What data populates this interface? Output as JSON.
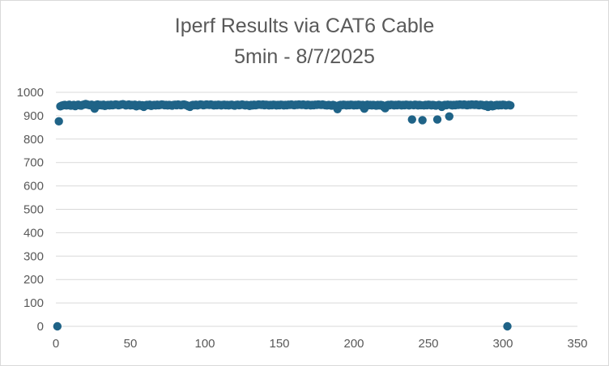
{
  "chart_data": {
    "type": "scatter",
    "title": "Iperf Results via CAT6 Cable",
    "subtitle": "5min - 8/7/2025",
    "xlabel": "",
    "ylabel": "",
    "xlim": [
      0,
      350
    ],
    "ylim": [
      0,
      1000
    ],
    "x_ticks": [
      0,
      50,
      100,
      150,
      200,
      250,
      300,
      350
    ],
    "y_ticks": [
      0,
      100,
      200,
      300,
      400,
      500,
      600,
      700,
      800,
      900,
      1000
    ],
    "grid": "horizontal",
    "legend": "none",
    "marker_color": "#1f6387",
    "series": [
      {
        "points": [
          [
            1,
            0
          ],
          [
            2,
            876
          ],
          [
            303,
            0
          ],
          [
            239,
            884
          ],
          [
            246,
            881
          ],
          [
            256,
            884
          ],
          [
            264,
            897
          ],
          [
            189,
            928
          ],
          [
            207,
            930
          ],
          [
            221,
            932
          ],
          [
            26,
            930
          ],
          [
            3,
            940
          ],
          [
            4,
            943
          ],
          [
            5,
            945
          ],
          [
            6,
            946
          ],
          [
            7,
            944
          ],
          [
            8,
            945
          ],
          [
            9,
            947
          ],
          [
            10,
            943
          ],
          [
            11,
            944
          ],
          [
            12,
            946
          ],
          [
            13,
            941
          ],
          [
            14,
            945
          ],
          [
            15,
            947
          ],
          [
            16,
            944
          ],
          [
            17,
            943
          ],
          [
            18,
            946
          ],
          [
            19,
            948
          ],
          [
            20,
            950
          ],
          [
            21,
            948
          ],
          [
            22,
            946
          ],
          [
            23,
            945
          ],
          [
            24,
            947
          ],
          [
            25,
            944
          ],
          [
            27,
            946
          ],
          [
            28,
            948
          ],
          [
            29,
            945
          ],
          [
            30,
            946
          ],
          [
            31,
            944
          ],
          [
            32,
            947
          ],
          [
            33,
            942
          ],
          [
            34,
            945
          ],
          [
            35,
            946
          ],
          [
            36,
            944
          ],
          [
            37,
            947
          ],
          [
            38,
            945
          ],
          [
            39,
            946
          ],
          [
            40,
            948
          ],
          [
            41,
            947
          ],
          [
            42,
            945
          ],
          [
            43,
            946
          ],
          [
            44,
            948
          ],
          [
            45,
            949
          ],
          [
            46,
            947
          ],
          [
            47,
            944
          ],
          [
            48,
            946
          ],
          [
            49,
            948
          ],
          [
            50,
            944
          ],
          [
            51,
            946
          ],
          [
            52,
            945
          ],
          [
            53,
            947
          ],
          [
            54,
            940
          ],
          [
            55,
            944
          ],
          [
            56,
            946
          ],
          [
            57,
            943
          ],
          [
            58,
            945
          ],
          [
            59,
            938
          ],
          [
            60,
            944
          ],
          [
            61,
            946
          ],
          [
            62,
            945
          ],
          [
            63,
            947
          ],
          [
            64,
            942
          ],
          [
            65,
            945
          ],
          [
            66,
            946
          ],
          [
            67,
            944
          ],
          [
            68,
            947
          ],
          [
            69,
            945
          ],
          [
            70,
            946
          ],
          [
            71,
            948
          ],
          [
            72,
            947
          ],
          [
            73,
            945
          ],
          [
            74,
            946
          ],
          [
            75,
            944
          ],
          [
            76,
            946
          ],
          [
            77,
            945
          ],
          [
            78,
            943
          ],
          [
            79,
            946
          ],
          [
            80,
            947
          ],
          [
            81,
            945
          ],
          [
            82,
            948
          ],
          [
            83,
            946
          ],
          [
            84,
            945
          ],
          [
            85,
            947
          ],
          [
            86,
            948
          ],
          [
            87,
            946
          ],
          [
            88,
            944
          ],
          [
            89,
            940
          ],
          [
            90,
            938
          ],
          [
            91,
            944
          ],
          [
            92,
            946
          ],
          [
            93,
            945
          ],
          [
            94,
            947
          ],
          [
            95,
            944
          ],
          [
            96,
            946
          ],
          [
            97,
            948
          ],
          [
            98,
            947
          ],
          [
            99,
            945
          ],
          [
            100,
            946
          ],
          [
            101,
            948
          ],
          [
            102,
            947
          ],
          [
            103,
            946
          ],
          [
            104,
            948
          ],
          [
            105,
            946
          ],
          [
            106,
            944
          ],
          [
            107,
            946
          ],
          [
            108,
            945
          ],
          [
            109,
            947
          ],
          [
            110,
            946
          ],
          [
            111,
            944
          ],
          [
            112,
            946
          ],
          [
            113,
            947
          ],
          [
            114,
            945
          ],
          [
            115,
            946
          ],
          [
            116,
            944
          ],
          [
            117,
            946
          ],
          [
            118,
            947
          ],
          [
            119,
            945
          ],
          [
            120,
            943
          ],
          [
            121,
            946
          ],
          [
            122,
            947
          ],
          [
            123,
            945
          ],
          [
            124,
            946
          ],
          [
            125,
            948
          ],
          [
            126,
            946
          ],
          [
            127,
            944
          ],
          [
            128,
            946
          ],
          [
            129,
            945
          ],
          [
            130,
            942
          ],
          [
            131,
            946
          ],
          [
            132,
            944
          ],
          [
            133,
            947
          ],
          [
            134,
            945
          ],
          [
            135,
            946
          ],
          [
            136,
            948
          ],
          [
            137,
            947
          ],
          [
            138,
            946
          ],
          [
            139,
            948
          ],
          [
            140,
            945
          ],
          [
            141,
            947
          ],
          [
            142,
            946
          ],
          [
            143,
            944
          ],
          [
            144,
            946
          ],
          [
            145,
            945
          ],
          [
            146,
            947
          ],
          [
            147,
            946
          ],
          [
            148,
            944
          ],
          [
            149,
            946
          ],
          [
            150,
            945
          ],
          [
            151,
            947
          ],
          [
            152,
            946
          ],
          [
            153,
            944
          ],
          [
            154,
            946
          ],
          [
            155,
            945
          ],
          [
            156,
            947
          ],
          [
            157,
            946
          ],
          [
            158,
            948
          ],
          [
            159,
            946
          ],
          [
            160,
            945
          ],
          [
            161,
            947
          ],
          [
            162,
            946
          ],
          [
            163,
            948
          ],
          [
            164,
            947
          ],
          [
            165,
            946
          ],
          [
            166,
            948
          ],
          [
            167,
            946
          ],
          [
            168,
            945
          ],
          [
            169,
            947
          ],
          [
            170,
            946
          ],
          [
            171,
            944
          ],
          [
            172,
            946
          ],
          [
            173,
            945
          ],
          [
            174,
            947
          ],
          [
            175,
            946
          ],
          [
            176,
            948
          ],
          [
            177,
            947
          ],
          [
            178,
            946
          ],
          [
            179,
            948
          ],
          [
            180,
            946
          ],
          [
            181,
            945
          ],
          [
            182,
            944
          ],
          [
            183,
            946
          ],
          [
            184,
            945
          ],
          [
            185,
            943
          ],
          [
            186,
            946
          ],
          [
            187,
            944
          ],
          [
            188,
            940
          ],
          [
            190,
            944
          ],
          [
            191,
            946
          ],
          [
            192,
            945
          ],
          [
            193,
            947
          ],
          [
            194,
            946
          ],
          [
            195,
            944
          ],
          [
            196,
            946
          ],
          [
            197,
            945
          ],
          [
            198,
            947
          ],
          [
            199,
            946
          ],
          [
            200,
            944
          ],
          [
            201,
            946
          ],
          [
            202,
            945
          ],
          [
            203,
            947
          ],
          [
            204,
            946
          ],
          [
            205,
            944
          ],
          [
            206,
            946
          ],
          [
            208,
            944
          ],
          [
            209,
            947
          ],
          [
            210,
            945
          ],
          [
            211,
            946
          ],
          [
            212,
            944
          ],
          [
            213,
            946
          ],
          [
            214,
            945
          ],
          [
            215,
            943
          ],
          [
            216,
            946
          ],
          [
            217,
            944
          ],
          [
            218,
            946
          ],
          [
            219,
            945
          ],
          [
            220,
            938
          ],
          [
            222,
            944
          ],
          [
            223,
            946
          ],
          [
            224,
            945
          ],
          [
            225,
            947
          ],
          [
            226,
            946
          ],
          [
            227,
            944
          ],
          [
            228,
            946
          ],
          [
            229,
            945
          ],
          [
            230,
            947
          ],
          [
            231,
            946
          ],
          [
            232,
            944
          ],
          [
            233,
            946
          ],
          [
            234,
            945
          ],
          [
            235,
            947
          ],
          [
            236,
            946
          ],
          [
            237,
            944
          ],
          [
            238,
            946
          ],
          [
            240,
            945
          ],
          [
            241,
            947
          ],
          [
            242,
            946
          ],
          [
            243,
            944
          ],
          [
            244,
            946
          ],
          [
            245,
            945
          ],
          [
            247,
            944
          ],
          [
            248,
            946
          ],
          [
            249,
            945
          ],
          [
            250,
            947
          ],
          [
            251,
            946
          ],
          [
            252,
            944
          ],
          [
            253,
            946
          ],
          [
            254,
            945
          ],
          [
            255,
            943
          ],
          [
            257,
            946
          ],
          [
            258,
            944
          ],
          [
            259,
            938
          ],
          [
            260,
            944
          ],
          [
            261,
            946
          ],
          [
            262,
            945
          ],
          [
            263,
            947
          ],
          [
            265,
            946
          ],
          [
            266,
            944
          ],
          [
            267,
            946
          ],
          [
            268,
            945
          ],
          [
            269,
            947
          ],
          [
            270,
            946
          ],
          [
            271,
            948
          ],
          [
            272,
            947
          ],
          [
            273,
            946
          ],
          [
            274,
            948
          ],
          [
            275,
            946
          ],
          [
            276,
            945
          ],
          [
            277,
            947
          ],
          [
            278,
            946
          ],
          [
            279,
            948
          ],
          [
            280,
            947
          ],
          [
            281,
            946
          ],
          [
            282,
            948
          ],
          [
            283,
            946
          ],
          [
            284,
            945
          ],
          [
            285,
            947
          ],
          [
            286,
            946
          ],
          [
            287,
            944
          ],
          [
            288,
            942
          ],
          [
            289,
            946
          ],
          [
            290,
            938
          ],
          [
            291,
            944
          ],
          [
            292,
            946
          ],
          [
            293,
            940
          ],
          [
            294,
            942
          ],
          [
            295,
            945
          ],
          [
            296,
            946
          ],
          [
            297,
            944
          ],
          [
            298,
            946
          ],
          [
            299,
            945
          ],
          [
            300,
            947
          ],
          [
            301,
            946
          ],
          [
            302,
            944
          ],
          [
            304,
            946
          ],
          [
            305,
            944
          ]
        ]
      }
    ]
  }
}
